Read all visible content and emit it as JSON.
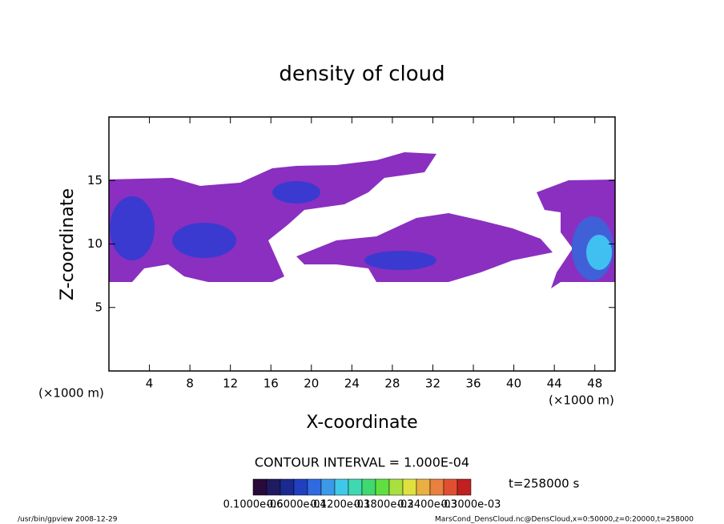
{
  "chart_data": {
    "type": "contour",
    "title": "density of cloud",
    "xlabel": "X-coordinate",
    "ylabel": "Z-coordinate",
    "x_unit": "(×1000 m)",
    "xlim": [
      0,
      50
    ],
    "ylim": [
      0,
      20
    ],
    "xticks": [
      4,
      8,
      12,
      16,
      20,
      24,
      28,
      32,
      36,
      40,
      44,
      48
    ],
    "yticks": [
      5,
      10,
      15
    ],
    "contour_interval": "CONTOUR INTERVAL = 1.000E-04",
    "time_label": "t=258000 s",
    "colorbar": {
      "colors": [
        "#2a0a3a",
        "#201a60",
        "#1a2a90",
        "#2040c0",
        "#2f6ae0",
        "#3a9ae8",
        "#40c8e8",
        "#40d8b0",
        "#40d870",
        "#60e040",
        "#a8e040",
        "#e0e040",
        "#e8b040",
        "#e88040",
        "#e05030",
        "#c02020"
      ],
      "labels": [
        "0.1000e-06",
        "0.6000e-04",
        "0.1200e-03",
        "0.1800e-03",
        "0.2400e-03",
        "0.3000e-03"
      ]
    },
    "footer_left": "/usr/bin/gpview  2008-12-29",
    "footer_right": "MarsCond_DensCloud.nc@DensCloud,x=0:50000,z=0:20000,t=258000"
  }
}
